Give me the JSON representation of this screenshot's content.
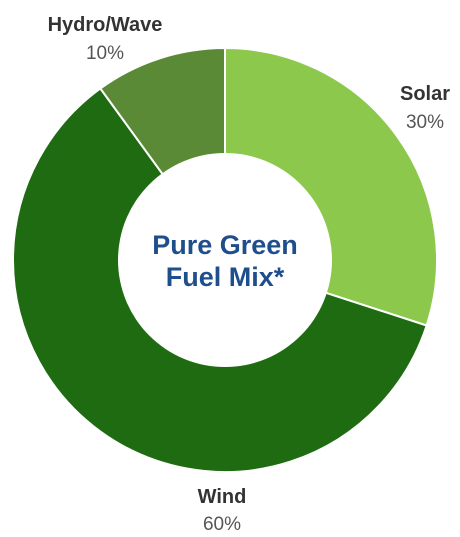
{
  "chart_data": {
    "type": "pie",
    "center_text": [
      "Pure Green",
      "Fuel Mix*"
    ],
    "categories": [
      "Solar",
      "Wind",
      "Hydro/Wave"
    ],
    "values": [
      30,
      60,
      10
    ],
    "value_labels": [
      "30%",
      "60%",
      "10%"
    ],
    "colors": [
      "#8cc84b",
      "#1f6b12",
      "#5a8a35"
    ]
  }
}
